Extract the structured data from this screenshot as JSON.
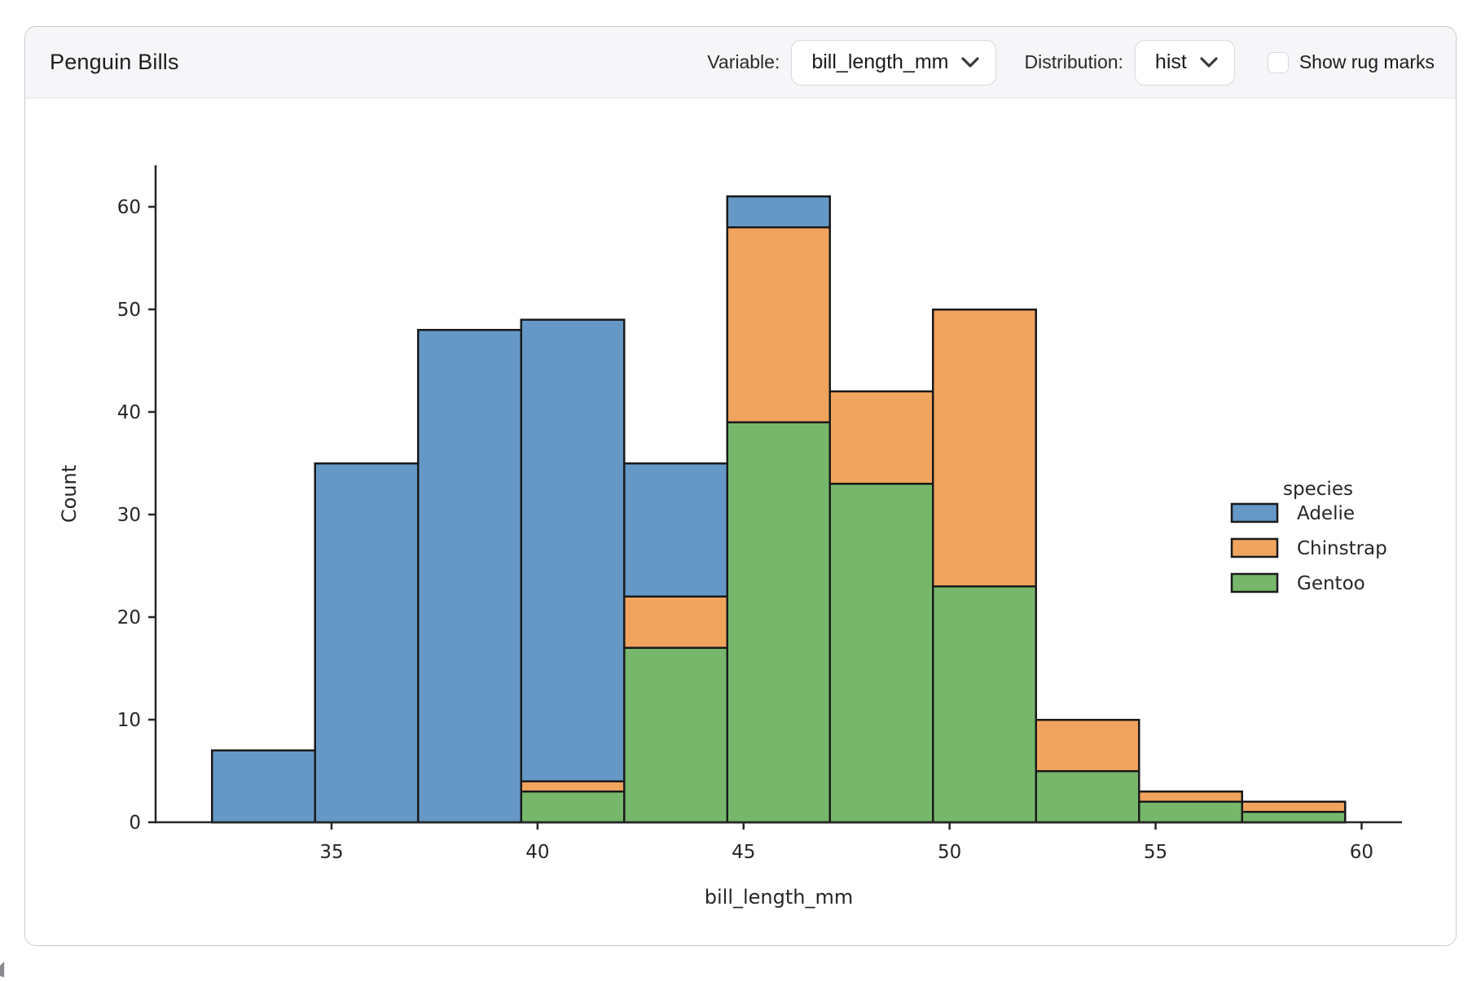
{
  "header": {
    "title": "Penguin Bills",
    "variable_label": "Variable:",
    "variable_value": "bill_length_mm",
    "distribution_label": "Distribution:",
    "distribution_value": "hist",
    "rug_label": "Show rug marks",
    "rug_checked": false
  },
  "chart_data": {
    "type": "bar",
    "subtype": "stacked-histogram",
    "title": "",
    "xlabel": "bill_length_mm",
    "ylabel": "Count",
    "bin_edges": [
      32.1,
      34.6,
      37.1,
      39.6,
      42.1,
      44.6,
      47.1,
      49.6,
      52.1,
      54.6,
      57.1,
      59.6
    ],
    "series": [
      {
        "name": "Adelie",
        "color": "#6598C6",
        "values": [
          7,
          35,
          48,
          45,
          13,
          3,
          0,
          0,
          0,
          0,
          0
        ]
      },
      {
        "name": "Chinstrap",
        "color": "#F0A45E",
        "values": [
          0,
          0,
          0,
          1,
          5,
          19,
          9,
          27,
          5,
          1,
          1
        ]
      },
      {
        "name": "Gentoo",
        "color": "#76B76B",
        "values": [
          0,
          0,
          0,
          3,
          17,
          39,
          33,
          23,
          5,
          2,
          1
        ]
      }
    ],
    "stack_bottom_to_top": [
      "Gentoo",
      "Chinstrap",
      "Adelie"
    ],
    "bin_totals": [
      7,
      35,
      48,
      49,
      35,
      61,
      42,
      50,
      10,
      3,
      2
    ],
    "x_ticks": [
      35,
      40,
      45,
      50,
      55,
      60
    ],
    "y_ticks": [
      0,
      10,
      20,
      30,
      40,
      50,
      60
    ],
    "xlim": [
      30.73,
      60.98
    ],
    "ylim": [
      0,
      64.05
    ],
    "grid": false,
    "legend": {
      "title": "species",
      "entries": [
        "Adelie",
        "Chinstrap",
        "Gentoo"
      ],
      "position": "center-right"
    },
    "bar_edge_color": "#1a1a1a",
    "axis_color": "#262626"
  }
}
